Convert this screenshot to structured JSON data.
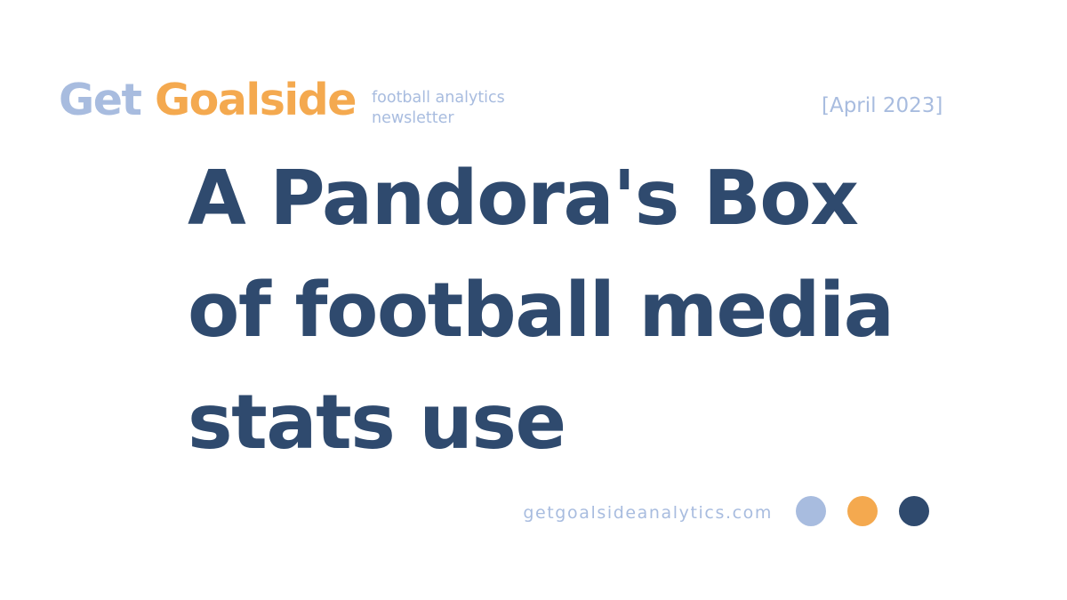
{
  "page": {
    "type": "newsletter-cover"
  },
  "colors": {
    "background": "#ffffff",
    "periwinkle": "#a8bcdf",
    "orange": "#f4a94f",
    "navy": "#2f4a6e"
  },
  "header": {
    "logo": {
      "word1": "Get",
      "word2": "Goalside"
    },
    "tagline": {
      "line1": "football analytics",
      "line2": "newsletter"
    },
    "issue_date": "[April 2023]"
  },
  "title": {
    "line1": "A Pandora's Box",
    "line2": "of football media",
    "line3": "stats use"
  },
  "footer": {
    "website": "getgoalsideanalytics.com",
    "dots": [
      {
        "name": "periwinkle-dot",
        "color": "#a8bcdf"
      },
      {
        "name": "orange-dot",
        "color": "#f4a94f"
      },
      {
        "name": "navy-dot",
        "color": "#2f4a6e"
      }
    ]
  }
}
